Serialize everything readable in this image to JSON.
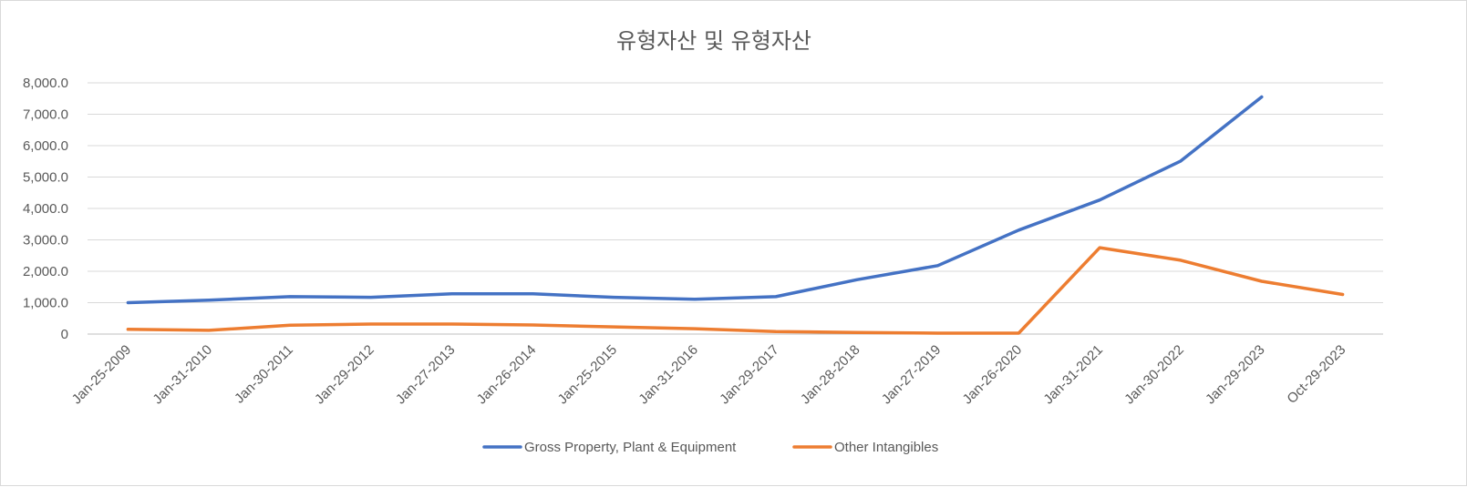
{
  "chart_data": {
    "type": "line",
    "title": "유형자산 및 유형자산",
    "xlabel": "",
    "ylabel": "",
    "ylim": [
      0,
      8000
    ],
    "y_ticks": [
      0,
      1000,
      2000,
      3000,
      4000,
      5000,
      6000,
      7000,
      8000
    ],
    "y_tick_labels": [
      "0",
      "1,000.0",
      "2,000.0",
      "3,000.0",
      "4,000.0",
      "5,000.0",
      "6,000.0",
      "7,000.0",
      "8,000.0"
    ],
    "grid": true,
    "legend_position": "bottom",
    "categories": [
      "Jan-25-2009",
      "Jan-31-2010",
      "Jan-30-2011",
      "Jan-29-2012",
      "Jan-27-2013",
      "Jan-26-2014",
      "Jan-25-2015",
      "Jan-31-2016",
      "Jan-29-2017",
      "Jan-28-2018",
      "Jan-27-2019",
      "Jan-26-2020",
      "Jan-31-2021",
      "Jan-30-2022",
      "Jan-29-2023",
      "Oct-29-2023"
    ],
    "series": [
      {
        "name": "Gross Property, Plant & Equipment",
        "color": "#4472c4",
        "values": [
          1000,
          1080,
          1190,
          1170,
          1280,
          1280,
          1170,
          1110,
          1190,
          1730,
          2180,
          3310,
          4270,
          5510,
          7550,
          null
        ]
      },
      {
        "name": "Other Intangibles",
        "color": "#ed7d31",
        "values": [
          150,
          120,
          280,
          320,
          320,
          290,
          230,
          170,
          80,
          50,
          30,
          30,
          2750,
          2350,
          1680,
          1260
        ]
      }
    ]
  }
}
